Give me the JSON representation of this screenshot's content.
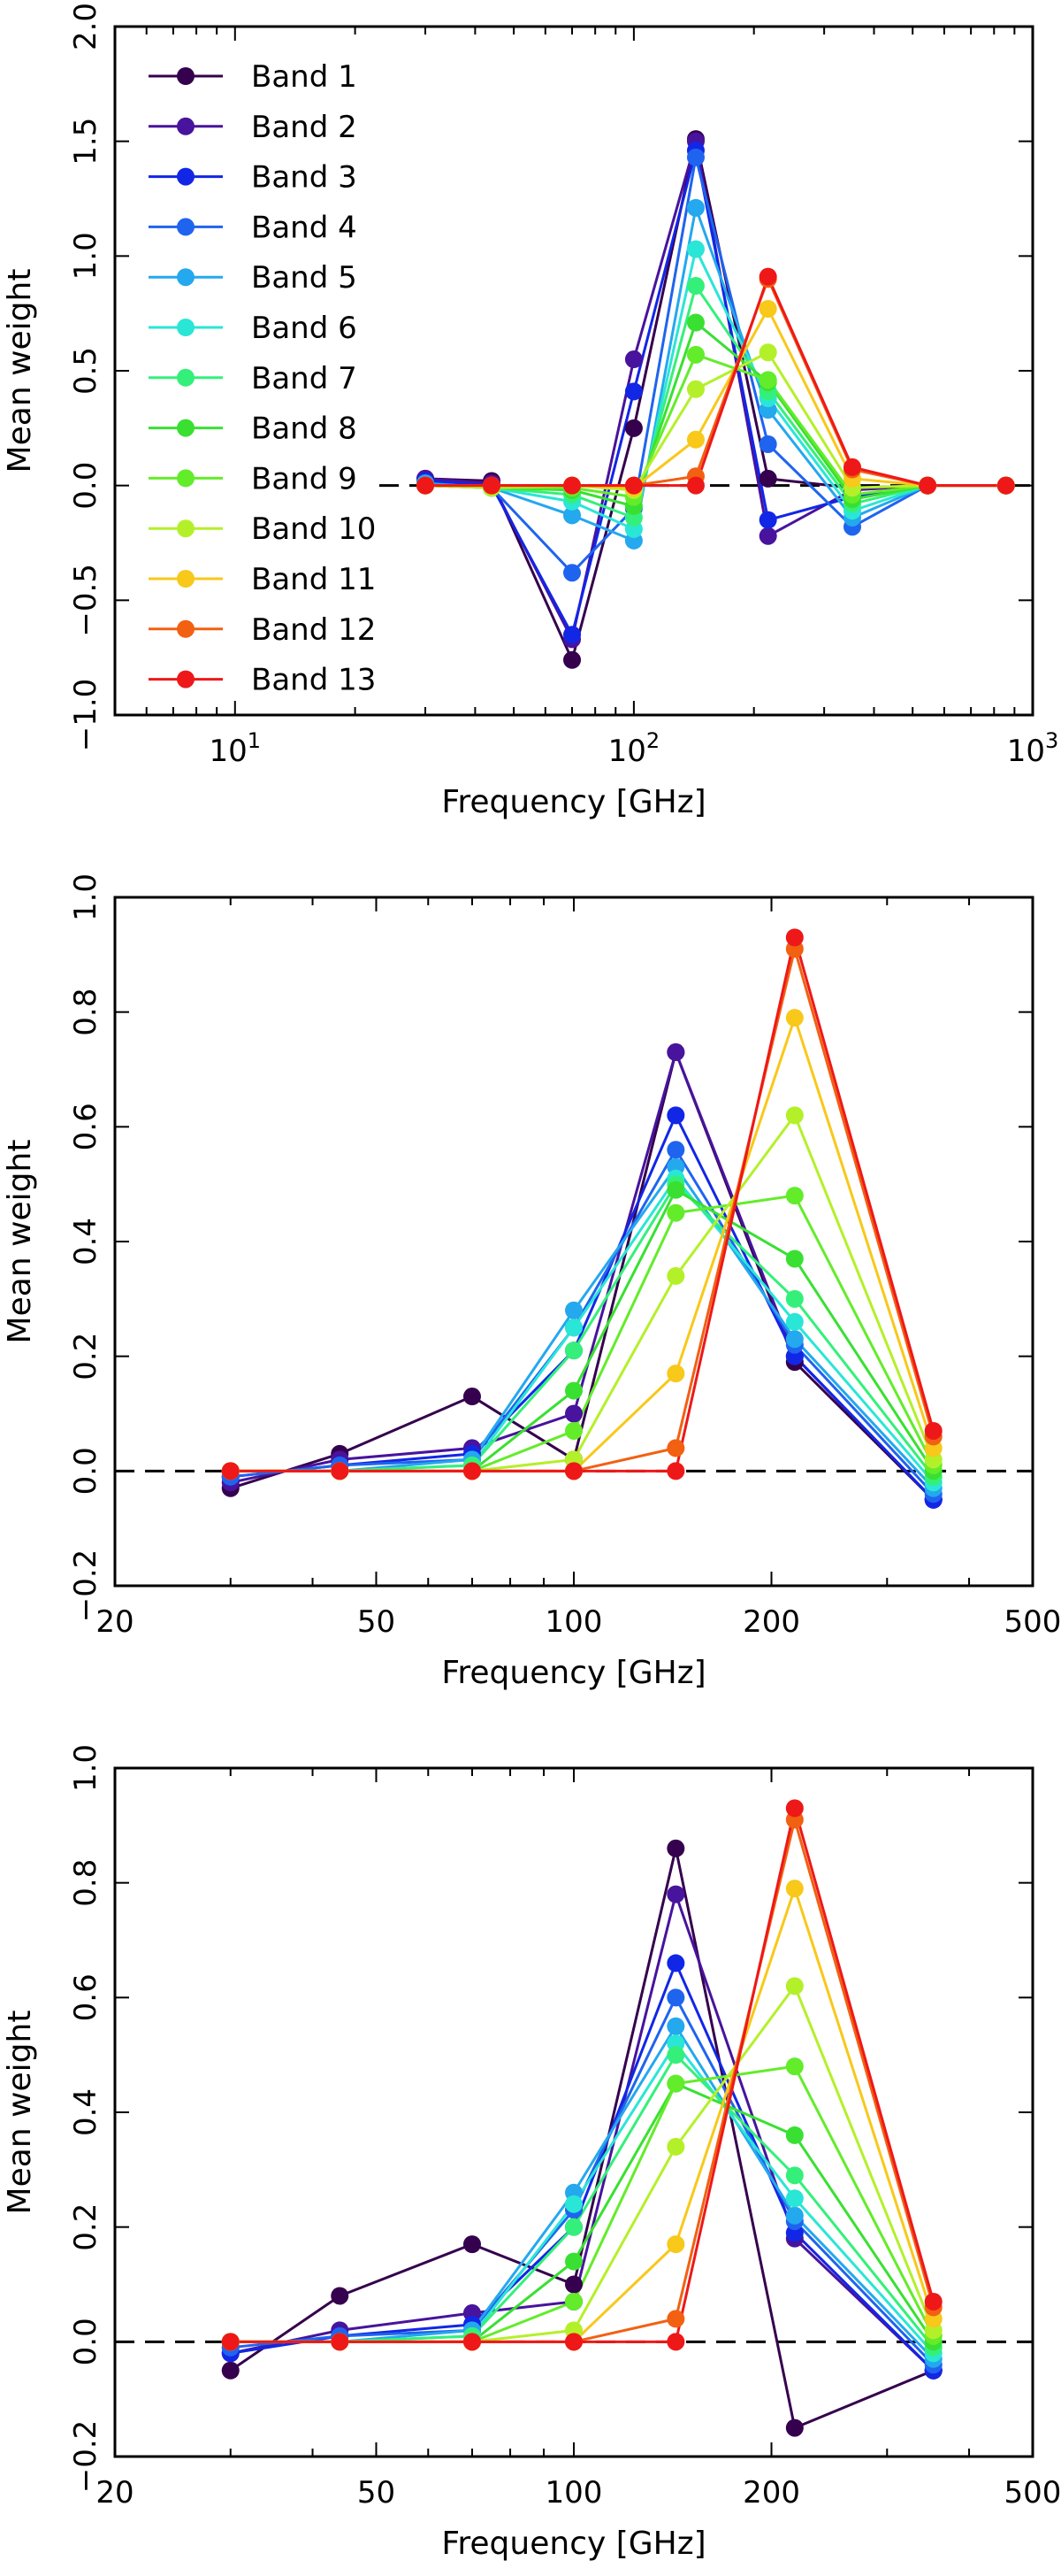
{
  "chart_data": [
    {
      "type": "line",
      "panel": "top",
      "xlabel": "Frequency [GHz]",
      "ylabel": "Mean weight",
      "xscale": "log",
      "xlim": [
        5,
        1000
      ],
      "ylim": [
        -1.0,
        2.0
      ],
      "xticks": [
        {
          "value": 10,
          "base": "10",
          "exp": "1"
        },
        {
          "value": 100,
          "base": "10",
          "exp": "2"
        },
        {
          "value": 1000,
          "base": "10",
          "exp": "3"
        }
      ],
      "yticks": [
        {
          "value": -1.0,
          "label": "−1.0"
        },
        {
          "value": -0.5,
          "label": "−0.5"
        },
        {
          "value": 0.0,
          "label": "0.0"
        },
        {
          "value": 0.5,
          "label": "0.5"
        },
        {
          "value": 1.0,
          "label": "1.0"
        },
        {
          "value": 1.5,
          "label": "1.5"
        },
        {
          "value": 2.0,
          "label": "2.0"
        }
      ],
      "zero_line": true,
      "legend_position": "upper-left",
      "x": [
        30,
        44,
        70,
        100,
        143,
        217,
        353,
        545,
        857
      ],
      "series": [
        {
          "name": "Band 1",
          "color": "#35004d",
          "values": [
            0.03,
            0.02,
            -0.76,
            0.25,
            1.51,
            0.03,
            -0.01,
            0.0,
            0.0
          ]
        },
        {
          "name": "Band 2",
          "color": "#48139d",
          "values": [
            0.03,
            0.01,
            -0.67,
            0.55,
            1.5,
            -0.22,
            -0.02,
            0.0,
            0.0
          ]
        },
        {
          "name": "Band 3",
          "color": "#1226e6",
          "values": [
            0.02,
            0.0,
            -0.65,
            0.41,
            1.46,
            -0.15,
            -0.05,
            0.0,
            0.0
          ]
        },
        {
          "name": "Band 4",
          "color": "#1f64ee",
          "values": [
            0.01,
            -0.01,
            -0.38,
            -0.1,
            1.43,
            0.18,
            -0.18,
            0.0,
            0.0
          ]
        },
        {
          "name": "Band 5",
          "color": "#24a8ee",
          "values": [
            0.01,
            -0.01,
            -0.13,
            -0.24,
            1.21,
            0.33,
            -0.14,
            0.0,
            0.0
          ]
        },
        {
          "name": "Band 6",
          "color": "#2ae6d6",
          "values": [
            0.0,
            -0.01,
            -0.07,
            -0.19,
            1.03,
            0.38,
            -0.11,
            0.0,
            0.0
          ]
        },
        {
          "name": "Band 7",
          "color": "#34f07a",
          "values": [
            0.0,
            -0.01,
            -0.04,
            -0.14,
            0.87,
            0.41,
            -0.08,
            0.0,
            0.0
          ]
        },
        {
          "name": "Band 8",
          "color": "#39e032",
          "values": [
            0.0,
            -0.01,
            -0.02,
            -0.09,
            0.71,
            0.45,
            -0.06,
            0.0,
            0.0
          ]
        },
        {
          "name": "Band 9",
          "color": "#63ec2a",
          "values": [
            0.0,
            -0.01,
            -0.01,
            -0.05,
            0.57,
            0.46,
            -0.04,
            0.0,
            0.0
          ]
        },
        {
          "name": "Band 10",
          "color": "#b4f02a",
          "values": [
            0.0,
            -0.01,
            0.0,
            -0.02,
            0.42,
            0.58,
            -0.01,
            0.0,
            0.0
          ]
        },
        {
          "name": "Band 11",
          "color": "#f8c81a",
          "values": [
            0.0,
            0.0,
            0.0,
            -0.01,
            0.2,
            0.77,
            0.03,
            0.0,
            0.0
          ]
        },
        {
          "name": "Band 12",
          "color": "#f26012",
          "values": [
            0.0,
            0.0,
            0.0,
            0.0,
            0.04,
            0.9,
            0.07,
            0.0,
            0.0
          ]
        },
        {
          "name": "Band 13",
          "color": "#ee1818",
          "values": [
            0.0,
            0.0,
            0.0,
            0.0,
            0.0,
            0.91,
            0.08,
            0.0,
            0.0
          ]
        }
      ]
    },
    {
      "type": "line",
      "panel": "middle",
      "xlabel": "Frequency [GHz]",
      "ylabel": "Mean weight",
      "xscale": "log",
      "xlim": [
        20,
        500
      ],
      "ylim": [
        -0.2,
        1.0
      ],
      "xticks": [
        {
          "value": 20,
          "label": "20"
        },
        {
          "value": 50,
          "label": "50"
        },
        {
          "value": 100,
          "label": "100"
        },
        {
          "value": 200,
          "label": "200"
        },
        {
          "value": 500,
          "label": "500"
        }
      ],
      "yticks": [
        {
          "value": -0.2,
          "label": "−0.2"
        },
        {
          "value": 0.0,
          "label": "0.0"
        },
        {
          "value": 0.2,
          "label": "0.2"
        },
        {
          "value": 0.4,
          "label": "0.4"
        },
        {
          "value": 0.6,
          "label": "0.6"
        },
        {
          "value": 0.8,
          "label": "0.8"
        },
        {
          "value": 1.0,
          "label": "1.0"
        }
      ],
      "zero_line": true,
      "x": [
        30,
        44,
        70,
        100,
        143,
        217,
        353
      ],
      "series": [
        {
          "name": "Band 1",
          "color": "#35004d",
          "values": [
            -0.03,
            0.03,
            0.13,
            0.02,
            0.73,
            0.19,
            -0.05
          ]
        },
        {
          "name": "Band 2",
          "color": "#48139d",
          "values": [
            -0.02,
            0.02,
            0.04,
            0.1,
            0.73,
            0.2,
            -0.05
          ]
        },
        {
          "name": "Band 3",
          "color": "#1226e6",
          "values": [
            -0.01,
            0.01,
            0.03,
            0.21,
            0.62,
            0.2,
            -0.05
          ]
        },
        {
          "name": "Band 4",
          "color": "#1f64ee",
          "values": [
            -0.01,
            0.01,
            0.02,
            0.25,
            0.56,
            0.22,
            -0.04
          ]
        },
        {
          "name": "Band 5",
          "color": "#24a8ee",
          "values": [
            0.0,
            0.0,
            0.02,
            0.28,
            0.53,
            0.23,
            -0.03
          ]
        },
        {
          "name": "Band 6",
          "color": "#2ae6d6",
          "values": [
            0.0,
            0.0,
            0.01,
            0.25,
            0.51,
            0.26,
            -0.02
          ]
        },
        {
          "name": "Band 7",
          "color": "#34f07a",
          "values": [
            0.0,
            0.0,
            0.01,
            0.21,
            0.5,
            0.3,
            -0.01
          ]
        },
        {
          "name": "Band 8",
          "color": "#39e032",
          "values": [
            0.0,
            0.0,
            0.0,
            0.14,
            0.49,
            0.37,
            0.0
          ]
        },
        {
          "name": "Band 9",
          "color": "#63ec2a",
          "values": [
            0.0,
            0.0,
            0.0,
            0.07,
            0.45,
            0.48,
            0.01
          ]
        },
        {
          "name": "Band 10",
          "color": "#b4f02a",
          "values": [
            0.0,
            0.0,
            0.0,
            0.02,
            0.34,
            0.62,
            0.02
          ]
        },
        {
          "name": "Band 11",
          "color": "#f8c81a",
          "values": [
            0.0,
            0.0,
            0.0,
            0.0,
            0.17,
            0.79,
            0.04
          ]
        },
        {
          "name": "Band 12",
          "color": "#f26012",
          "values": [
            0.0,
            0.0,
            0.0,
            0.0,
            0.04,
            0.91,
            0.06
          ]
        },
        {
          "name": "Band 13",
          "color": "#ee1818",
          "values": [
            0.0,
            0.0,
            0.0,
            0.0,
            0.0,
            0.93,
            0.07
          ]
        }
      ]
    },
    {
      "type": "line",
      "panel": "bottom",
      "xlabel": "Frequency [GHz]",
      "ylabel": "Mean weight",
      "xscale": "log",
      "xlim": [
        20,
        500
      ],
      "ylim": [
        -0.2,
        1.0
      ],
      "xticks": [
        {
          "value": 20,
          "label": "20"
        },
        {
          "value": 50,
          "label": "50"
        },
        {
          "value": 100,
          "label": "100"
        },
        {
          "value": 200,
          "label": "200"
        },
        {
          "value": 500,
          "label": "500"
        }
      ],
      "yticks": [
        {
          "value": -0.2,
          "label": "−0.2"
        },
        {
          "value": 0.0,
          "label": "0.0"
        },
        {
          "value": 0.2,
          "label": "0.2"
        },
        {
          "value": 0.4,
          "label": "0.4"
        },
        {
          "value": 0.6,
          "label": "0.6"
        },
        {
          "value": 0.8,
          "label": "0.8"
        },
        {
          "value": 1.0,
          "label": "1.0"
        }
      ],
      "zero_line": true,
      "x": [
        30,
        44,
        70,
        100,
        143,
        217,
        353
      ],
      "series": [
        {
          "name": "Band 1",
          "color": "#35004d",
          "values": [
            -0.05,
            0.08,
            0.17,
            0.1,
            0.86,
            -0.15,
            -0.05
          ]
        },
        {
          "name": "Band 2",
          "color": "#48139d",
          "values": [
            -0.02,
            0.02,
            0.05,
            0.07,
            0.78,
            0.18,
            -0.05
          ]
        },
        {
          "name": "Band 3",
          "color": "#1226e6",
          "values": [
            -0.02,
            0.01,
            0.03,
            0.2,
            0.66,
            0.19,
            -0.05
          ]
        },
        {
          "name": "Band 4",
          "color": "#1f64ee",
          "values": [
            -0.01,
            0.01,
            0.02,
            0.23,
            0.6,
            0.21,
            -0.04
          ]
        },
        {
          "name": "Band 5",
          "color": "#24a8ee",
          "values": [
            0.0,
            0.0,
            0.02,
            0.26,
            0.55,
            0.22,
            -0.03
          ]
        },
        {
          "name": "Band 6",
          "color": "#2ae6d6",
          "values": [
            0.0,
            0.0,
            0.01,
            0.24,
            0.52,
            0.25,
            -0.02
          ]
        },
        {
          "name": "Band 7",
          "color": "#34f07a",
          "values": [
            0.0,
            0.0,
            0.01,
            0.2,
            0.5,
            0.29,
            -0.01
          ]
        },
        {
          "name": "Band 8",
          "color": "#39e032",
          "values": [
            0.0,
            0.0,
            0.0,
            0.14,
            0.45,
            0.36,
            0.0
          ]
        },
        {
          "name": "Band 9",
          "color": "#63ec2a",
          "values": [
            0.0,
            0.0,
            0.0,
            0.07,
            0.45,
            0.48,
            0.01
          ]
        },
        {
          "name": "Band 10",
          "color": "#b4f02a",
          "values": [
            0.0,
            0.0,
            0.0,
            0.02,
            0.34,
            0.62,
            0.02
          ]
        },
        {
          "name": "Band 11",
          "color": "#f8c81a",
          "values": [
            0.0,
            0.0,
            0.0,
            0.0,
            0.17,
            0.79,
            0.04
          ]
        },
        {
          "name": "Band 12",
          "color": "#f26012",
          "values": [
            0.0,
            0.0,
            0.0,
            0.0,
            0.04,
            0.91,
            0.06
          ]
        },
        {
          "name": "Band 13",
          "color": "#ee1818",
          "values": [
            0.0,
            0.0,
            0.0,
            0.0,
            0.0,
            0.93,
            0.07
          ]
        }
      ]
    }
  ]
}
